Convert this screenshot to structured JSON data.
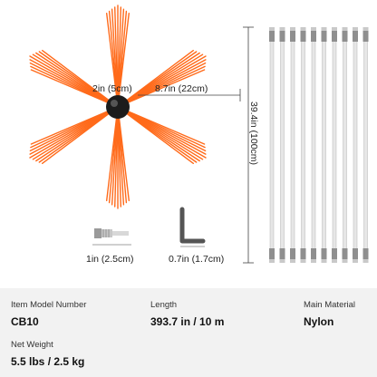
{
  "dimensions": {
    "hub_diameter": "2in (5cm)",
    "bristle_length": "8.7in (22cm)",
    "rod_length": "39.4in (100cm)",
    "adapter_length": "1in (2.5cm)",
    "wrench_length": "0.7in (1.7cm)"
  },
  "colors": {
    "bristle": "#ff6a1a",
    "rod": "#e6e6e6",
    "hub": "#1c1c1c",
    "panel": "#f2f2f2"
  },
  "specs": [
    {
      "label": "Item Model Number",
      "value": "CB10"
    },
    {
      "label": "Length",
      "value": "393.7 in / 10 m"
    },
    {
      "label": "Main Material",
      "value": "Nylon"
    },
    {
      "label": "Net Weight",
      "value": "5.5 lbs / 2.5 kg"
    }
  ]
}
